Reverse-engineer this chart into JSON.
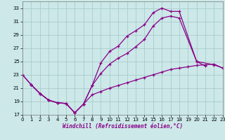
{
  "xlabel": "Windchill (Refroidissement éolien,°C)",
  "xlim": [
    0,
    23
  ],
  "ylim": [
    17,
    34
  ],
  "yticks": [
    17,
    19,
    21,
    23,
    25,
    27,
    29,
    31,
    33
  ],
  "xticks": [
    0,
    1,
    2,
    3,
    4,
    5,
    6,
    7,
    8,
    9,
    10,
    11,
    12,
    13,
    14,
    15,
    16,
    17,
    18,
    19,
    20,
    21,
    22,
    23
  ],
  "bg_color": "#cce8e8",
  "grid_color": "#aacccc",
  "line_color": "#880088",
  "line1_x": [
    0,
    1,
    2,
    3,
    4,
    5,
    6,
    7,
    8,
    9,
    10,
    11,
    12,
    13,
    14,
    15,
    16,
    17,
    18,
    20,
    21
  ],
  "line1_y": [
    23,
    21.5,
    20.2,
    19.2,
    18.8,
    18.7,
    17.3,
    18.6,
    21.4,
    24.8,
    26.5,
    27.3,
    28.8,
    29.6,
    30.5,
    32.3,
    33.0,
    32.5,
    32.5,
    25.0,
    24.3
  ],
  "line2_x": [
    0,
    1,
    2,
    3,
    4,
    5,
    6,
    7,
    8,
    9,
    10,
    11,
    12,
    13,
    14,
    15,
    16,
    17,
    18,
    20,
    22,
    23
  ],
  "line2_y": [
    23,
    21.5,
    20.2,
    19.2,
    18.8,
    18.7,
    17.3,
    18.6,
    21.4,
    23.2,
    24.6,
    25.5,
    26.2,
    27.2,
    28.3,
    30.3,
    31.5,
    31.8,
    31.5,
    25.0,
    24.5,
    24.0
  ],
  "line3_x": [
    1,
    2,
    3,
    4,
    5,
    6,
    7,
    8,
    9,
    10,
    11,
    12,
    13,
    14,
    15,
    16,
    17,
    18,
    19,
    20,
    21,
    22,
    23
  ],
  "line3_y": [
    21.5,
    20.2,
    19.2,
    18.8,
    18.7,
    17.3,
    18.6,
    20.0,
    20.5,
    21.0,
    21.4,
    21.8,
    22.2,
    22.6,
    23.0,
    23.4,
    23.8,
    24.0,
    24.2,
    24.4,
    24.5,
    24.6,
    24.0
  ]
}
